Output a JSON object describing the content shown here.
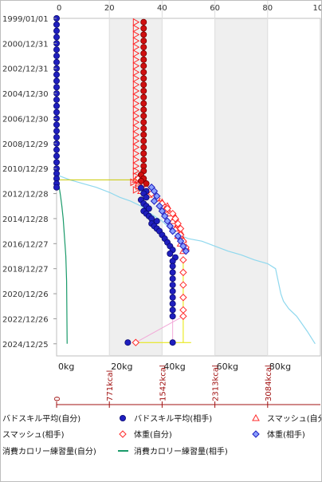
{
  "chart_data": {
    "type": "scatter",
    "orientation": "time on vertical axis, values on horizontal axes",
    "colors": {
      "self": "#1f1fbf",
      "opponent": "#ff2a2a",
      "band_shade": "#efefef",
      "calorie_self": "#8fd8ee",
      "calorie_opponent": "#1a9a6a",
      "weight_connector": "#f2a8d8",
      "sample_box": "#e6e600",
      "guide_line": "#c8c800",
      "kcal_axis": "#a01010",
      "grid": "#bfbfbf"
    },
    "y_axis": {
      "type": "time",
      "range": [
        "1999/01/01",
        "2025/12/24"
      ],
      "tick_labels": [
        "1999/01/01",
        "2000/12/31",
        "2002/12/31",
        "2004/12/30",
        "2006/12/30",
        "2008/12/29",
        "2010/12/29",
        "2012/12/28",
        "2014/12/28",
        "2016/12/27",
        "2018/12/27",
        "2020/12/26",
        "2022/12/26",
        "2024/12/25"
      ]
    },
    "x_axis_top": {
      "range": [
        0,
        100
      ],
      "tick_labels": [
        "0",
        "20",
        "40",
        "60",
        "80",
        "100"
      ],
      "shaded_bands": [
        [
          20,
          40
        ],
        [
          60,
          80
        ]
      ]
    },
    "x_axis_weight": {
      "range": [
        0,
        100
      ],
      "tick_labels": [
        "0kg",
        "20kg",
        "40kg",
        "60kg",
        "80kg"
      ]
    },
    "x_axis_kcal": {
      "tick_labels": [
        "0",
        "771kcal",
        "1542kcal",
        "2313kcal",
        "3084kcal"
      ]
    },
    "legend": {
      "placement": "bottom",
      "entries": [
        {
          "label": "バドスキル平均(自分)",
          "marker": "circle",
          "color": "#1f1fbf"
        },
        {
          "label": "バドスキル平均(相手)",
          "marker": "circle",
          "color": "#d01010"
        },
        {
          "label": "スマッシュ(自分)",
          "marker": "triangle",
          "color": "#ff2a2a"
        },
        {
          "label": "スマッシュ(相手)",
          "marker": "triangle-right",
          "color": "#ff2a2a"
        },
        {
          "label": "体重(自分)",
          "marker": "diamond",
          "color": "#ff2a2a"
        },
        {
          "label": "体重(相手)",
          "marker": "diamond",
          "color": "#1f1fbf"
        },
        {
          "label": "消費カロリー練習量(自分)",
          "marker": "line",
          "color": "#8fd8ee"
        },
        {
          "label": "消費カロリー練習量(相手)",
          "marker": "line",
          "color": "#1a9a6a"
        }
      ]
    },
    "series": [
      {
        "name": "バドスキル平均(自分)",
        "marker": "circle",
        "points": [
          [
            0,
            1999.0
          ],
          [
            0,
            1999.5
          ],
          [
            0,
            2000.0
          ],
          [
            0,
            2000.5
          ],
          [
            0,
            2001.0
          ],
          [
            0,
            2001.5
          ],
          [
            0,
            2002.0
          ],
          [
            0,
            2002.5
          ],
          [
            0,
            2003.0
          ],
          [
            0,
            2003.5
          ],
          [
            0,
            2004.0
          ],
          [
            0,
            2004.5
          ],
          [
            0,
            2005.0
          ],
          [
            0,
            2005.5
          ],
          [
            0,
            2006.0
          ],
          [
            0,
            2006.5
          ],
          [
            0,
            2007.0
          ],
          [
            0,
            2007.5
          ],
          [
            0,
            2008.0
          ],
          [
            0,
            2008.5
          ],
          [
            0,
            2009.0
          ],
          [
            0,
            2009.5
          ],
          [
            0,
            2010.0
          ],
          [
            0,
            2010.5
          ],
          [
            0,
            2011.0
          ],
          [
            0,
            2011.4
          ],
          [
            0,
            2011.8
          ],
          [
            0,
            2012.2
          ],
          [
            0,
            2012.5
          ],
          [
            32,
            2012.55
          ],
          [
            34,
            2012.8
          ],
          [
            33,
            2013.0
          ],
          [
            34,
            2013.3
          ],
          [
            32,
            2013.5
          ],
          [
            33,
            2013.8
          ],
          [
            34,
            2014.0
          ],
          [
            35,
            2014.2
          ],
          [
            33,
            2014.4
          ],
          [
            34,
            2014.6
          ],
          [
            35,
            2014.8
          ],
          [
            36,
            2015.0
          ],
          [
            38,
            2015.2
          ],
          [
            36,
            2015.4
          ],
          [
            37,
            2015.6
          ],
          [
            38,
            2015.8
          ],
          [
            39,
            2016.0
          ],
          [
            40,
            2016.3
          ],
          [
            41,
            2016.6
          ],
          [
            42,
            2016.9
          ],
          [
            43,
            2017.2
          ],
          [
            44,
            2017.5
          ],
          [
            43,
            2017.8
          ],
          [
            45,
            2018.1
          ],
          [
            44,
            2018.4
          ],
          [
            44,
            2018.8
          ],
          [
            44,
            2019.3
          ],
          [
            44,
            2019.8
          ],
          [
            44,
            2020.3
          ],
          [
            44,
            2020.8
          ],
          [
            44,
            2021.3
          ],
          [
            44,
            2021.8
          ],
          [
            44,
            2022.3
          ],
          [
            44,
            2022.8
          ],
          [
            27,
            2024.9
          ],
          [
            44,
            2024.9
          ]
        ]
      },
      {
        "name": "バドスキル平均(相手)",
        "marker": "circle",
        "points": [
          [
            33,
            1999.3
          ],
          [
            33,
            1999.8
          ],
          [
            33,
            2000.3
          ],
          [
            33,
            2000.8
          ],
          [
            33,
            2001.3
          ],
          [
            33,
            2001.8
          ],
          [
            33,
            2002.3
          ],
          [
            33,
            2002.8
          ],
          [
            33,
            2003.3
          ],
          [
            33,
            2003.8
          ],
          [
            33,
            2004.3
          ],
          [
            33,
            2004.8
          ],
          [
            33,
            2005.3
          ],
          [
            33,
            2005.8
          ],
          [
            33,
            2006.3
          ],
          [
            33,
            2006.8
          ],
          [
            33,
            2007.3
          ],
          [
            33,
            2007.8
          ],
          [
            33,
            2008.3
          ],
          [
            33,
            2008.8
          ],
          [
            33,
            2009.3
          ],
          [
            33,
            2009.8
          ],
          [
            33,
            2010.3
          ],
          [
            33,
            2010.8
          ],
          [
            33,
            2011.2
          ],
          [
            32,
            2011.5
          ],
          [
            33,
            2011.8
          ],
          [
            32,
            2012.0
          ],
          [
            34,
            2012.2
          ]
        ]
      },
      {
        "name": "スマッシュ(自分)",
        "marker": "triangle",
        "points": [
          [
            30,
            2011.9
          ],
          [
            31,
            2012.2
          ],
          [
            33,
            2012.5
          ],
          [
            32,
            2012.8
          ],
          [
            35,
            2013.1
          ],
          [
            38,
            2013.4
          ],
          [
            40,
            2013.7
          ],
          [
            42,
            2014.0
          ],
          [
            41,
            2014.3
          ],
          [
            43,
            2014.6
          ],
          [
            45,
            2014.9
          ],
          [
            44,
            2015.2
          ],
          [
            46,
            2015.5
          ],
          [
            45,
            2015.8
          ],
          [
            47,
            2016.1
          ],
          [
            46,
            2016.4
          ],
          [
            48,
            2016.7
          ],
          [
            47,
            2017.0
          ],
          [
            49,
            2017.3
          ],
          [
            48,
            2017.6
          ]
        ]
      },
      {
        "name": "スマッシュ(相手)",
        "marker": "triangle-right",
        "points": [
          [
            30,
            1999.3
          ],
          [
            30,
            1999.8
          ],
          [
            30,
            2000.3
          ],
          [
            30,
            2000.8
          ],
          [
            30,
            2001.3
          ],
          [
            30,
            2001.8
          ],
          [
            30,
            2002.3
          ],
          [
            30,
            2002.8
          ],
          [
            30,
            2003.3
          ],
          [
            30,
            2003.8
          ],
          [
            30,
            2004.3
          ],
          [
            30,
            2004.8
          ],
          [
            30,
            2005.3
          ],
          [
            30,
            2005.8
          ],
          [
            30,
            2006.3
          ],
          [
            30,
            2006.8
          ],
          [
            30,
            2007.3
          ],
          [
            30,
            2007.8
          ],
          [
            30,
            2008.3
          ],
          [
            30,
            2008.8
          ],
          [
            30,
            2009.3
          ],
          [
            30,
            2009.8
          ],
          [
            30,
            2010.3
          ],
          [
            30,
            2010.8
          ],
          [
            30,
            2011.2
          ],
          [
            30,
            2011.6
          ],
          [
            31,
            2011.9
          ],
          [
            29,
            2012.1
          ],
          [
            31,
            2012.4
          ],
          [
            30,
            2012.7
          ]
        ]
      },
      {
        "name": "体重(自分)",
        "marker": "diamond",
        "points": [
          [
            31,
            2011.8
          ],
          [
            33,
            2012.2
          ],
          [
            34,
            2012.6
          ],
          [
            36,
            2013.0
          ],
          [
            38,
            2013.4
          ],
          [
            40,
            2013.8
          ],
          [
            42,
            2014.2
          ],
          [
            44,
            2014.6
          ],
          [
            45,
            2015.0
          ],
          [
            46,
            2015.4
          ],
          [
            47,
            2015.8
          ],
          [
            47,
            2016.3
          ],
          [
            48,
            2016.8
          ],
          [
            49,
            2017.3
          ],
          [
            48,
            2018.3
          ],
          [
            48,
            2019.3
          ],
          [
            48,
            2020.3
          ],
          [
            48,
            2021.3
          ],
          [
            48,
            2022.3
          ],
          [
            48,
            2022.8
          ],
          [
            30,
            2024.9
          ]
        ]
      },
      {
        "name": "体重(相手)",
        "marker": "diamond",
        "points": [
          [
            36,
            2012.5
          ],
          [
            37,
            2012.8
          ],
          [
            38,
            2013.2
          ],
          [
            37,
            2013.6
          ],
          [
            39,
            2014.0
          ],
          [
            40,
            2014.4
          ],
          [
            41,
            2014.8
          ],
          [
            42,
            2015.2
          ],
          [
            43,
            2015.6
          ],
          [
            44,
            2016.0
          ],
          [
            46,
            2016.4
          ],
          [
            47,
            2016.8
          ],
          [
            48,
            2017.2
          ],
          [
            49,
            2017.6
          ]
        ]
      },
      {
        "name": "消費カロリー練習量(自分)",
        "marker": "line",
        "points": [
          [
            0,
            2011.5
          ],
          [
            5,
            2011.9
          ],
          [
            10,
            2012.2
          ],
          [
            15,
            2012.5
          ],
          [
            20,
            2012.9
          ],
          [
            24,
            2013.3
          ],
          [
            28,
            2013.6
          ],
          [
            32,
            2014.0
          ],
          [
            35,
            2014.5
          ],
          [
            40,
            2015.2
          ],
          [
            45,
            2016.2
          ],
          [
            50,
            2016.6
          ],
          [
            55,
            2016.8
          ],
          [
            60,
            2017.2
          ],
          [
            65,
            2017.6
          ],
          [
            70,
            2017.9
          ],
          [
            75,
            2018.3
          ],
          [
            80,
            2018.6
          ],
          [
            83,
            2019.0
          ],
          [
            84,
            2020.0
          ],
          [
            85,
            2021.0
          ],
          [
            86,
            2021.6
          ],
          [
            88,
            2022.2
          ],
          [
            91,
            2022.8
          ],
          [
            95,
            2024.0
          ],
          [
            98,
            2025.0
          ]
        ]
      },
      {
        "name": "消費カロリー練習量(相手)",
        "marker": "line",
        "points": [
          [
            0,
            2011.5
          ],
          [
            1,
            2012.5
          ],
          [
            1.5,
            2013.2
          ],
          [
            2,
            2014.0
          ],
          [
            2.5,
            2015.0
          ],
          [
            3,
            2016.5
          ],
          [
            3.5,
            2018.0
          ],
          [
            3.8,
            2020.0
          ],
          [
            4,
            2025.0
          ]
        ]
      }
    ]
  }
}
